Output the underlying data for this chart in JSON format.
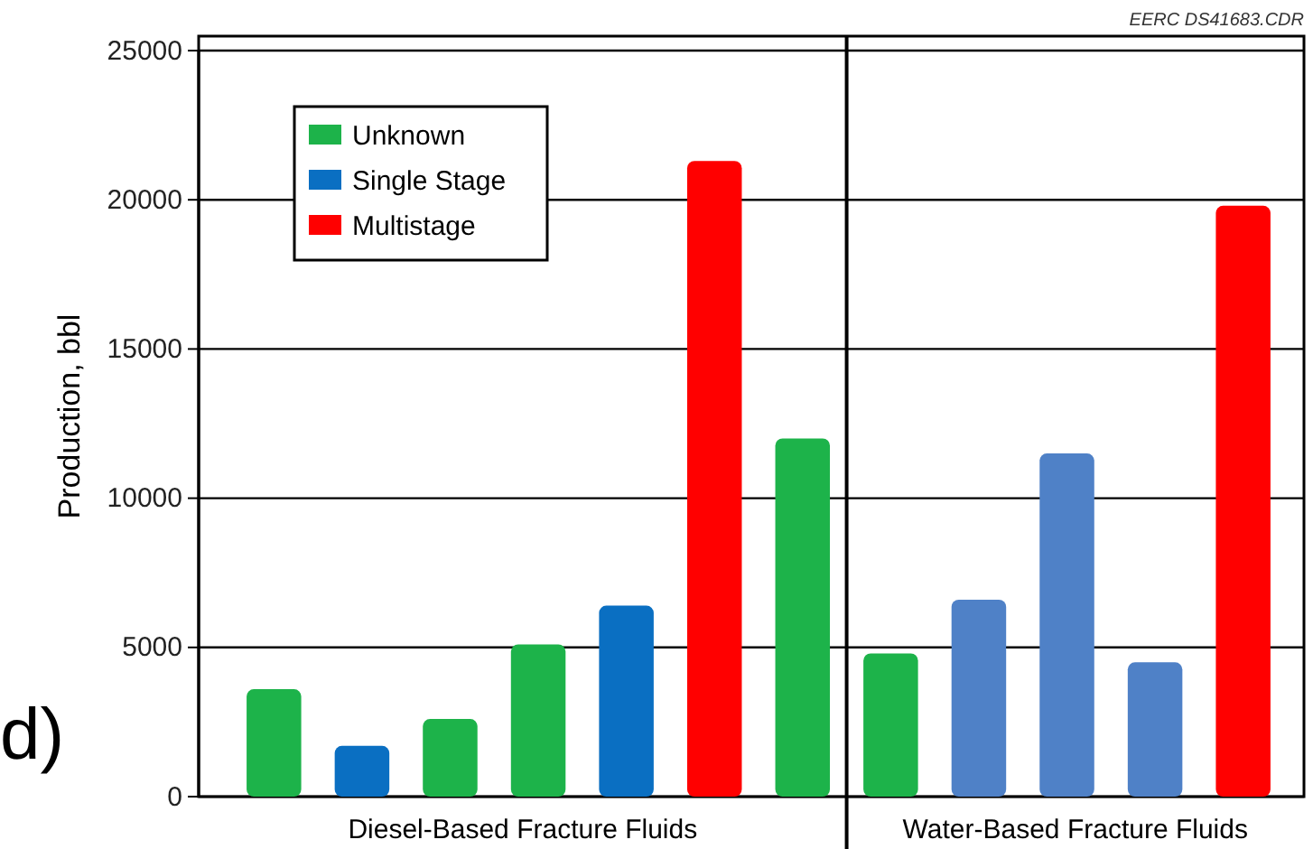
{
  "chart_data": {
    "type": "bar",
    "categories": [
      null,
      null,
      null,
      null,
      null,
      null,
      null,
      null,
      null,
      null,
      null,
      null
    ],
    "series": [
      {
        "name": "Unknown",
        "color": "#1db34a",
        "values": [
          3600,
          null,
          2600,
          5100,
          null,
          null,
          12000,
          4800,
          null,
          null,
          null,
          null
        ]
      },
      {
        "name": "Single Stage",
        "color": "#0a6fc2",
        "colors": [
          null,
          "#0a6fc2",
          null,
          null,
          "#0a6fc2",
          null,
          null,
          null,
          "#4f81c7",
          "#4f81c7",
          "#4f81c7",
          null
        ],
        "values": [
          null,
          1700,
          null,
          null,
          6400,
          null,
          null,
          null,
          6600,
          11500,
          4500,
          null
        ]
      },
      {
        "name": "Multistage",
        "color": "#ff0000",
        "values": [
          null,
          null,
          null,
          null,
          null,
          21300,
          null,
          null,
          null,
          null,
          null,
          19800
        ]
      }
    ],
    "ylabel": "Production, bbl",
    "ylim": [
      0,
      25000
    ],
    "yticks": [
      0,
      5000,
      10000,
      15000,
      20000,
      25000
    ],
    "grid": "y",
    "legend": "top left",
    "annotations": [
      "Diesel-Based Fracture Fluids",
      "Water-Based Fracture Fluids",
      "EERC DS41683.CDR",
      "d)"
    ]
  }
}
